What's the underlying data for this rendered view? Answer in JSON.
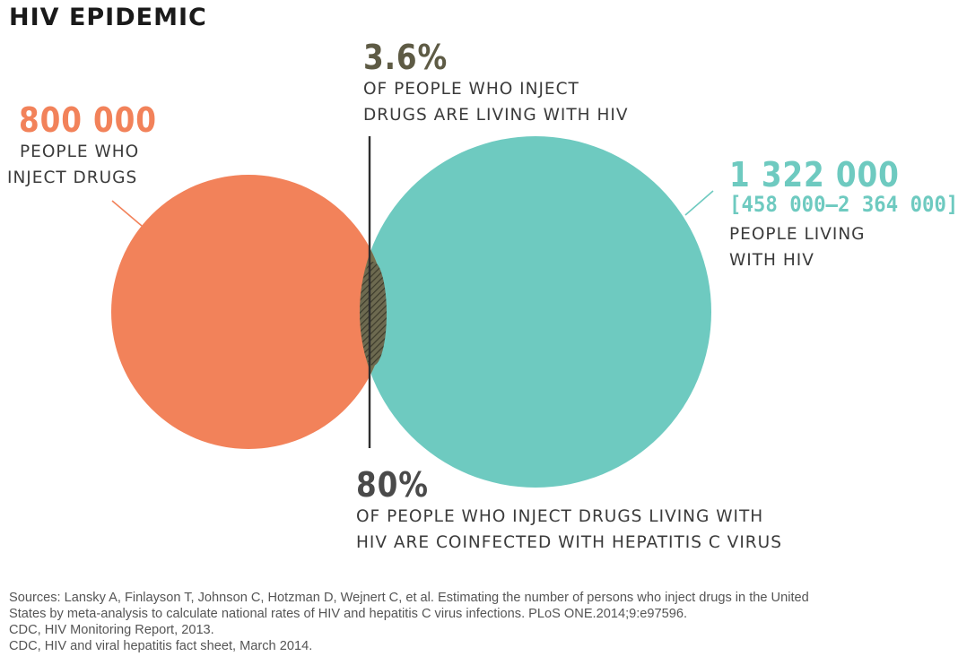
{
  "title": "HIV EPIDEMIC",
  "colors": {
    "pwid": "#f2825a",
    "hiv": "#6ecac0",
    "overlap": "#5e5b45",
    "text": "#3b3b3b"
  },
  "pwid": {
    "number": "800 000",
    "caption_line1": "PEOPLE WHO",
    "caption_line2": "INJECT DRUGS"
  },
  "overlap_stat": {
    "number": "3.6%",
    "caption_line1": "OF PEOPLE WHO INJECT",
    "caption_line2": "DRUGS ARE LIVING WITH HIV"
  },
  "hiv": {
    "number": "1 322 000",
    "range": "[458 000–2 364 000]",
    "caption_line1": "PEOPLE LIVING",
    "caption_line2": "WITH HIV"
  },
  "coinfection": {
    "number": "80%",
    "caption_line1": "OF PEOPLE WHO INJECT DRUGS LIVING WITH",
    "caption_line2": "HIV ARE COINFECTED WITH HEPATITIS C VIRUS"
  },
  "sources": [
    "Sources: Lansky A, Finlayson T, Johnson C, Hotzman D, Wejnert C, et al. Estimating the number of persons who inject drugs in the United",
    "States by meta-analysis to calculate national rates of HIV and hepatitis C virus infections. PLoS ONE.2014;9:e97596.",
    "CDC, HIV Monitoring Report, 2013.",
    "CDC, HIV and viral hepatitis fact sheet, March 2014."
  ]
}
